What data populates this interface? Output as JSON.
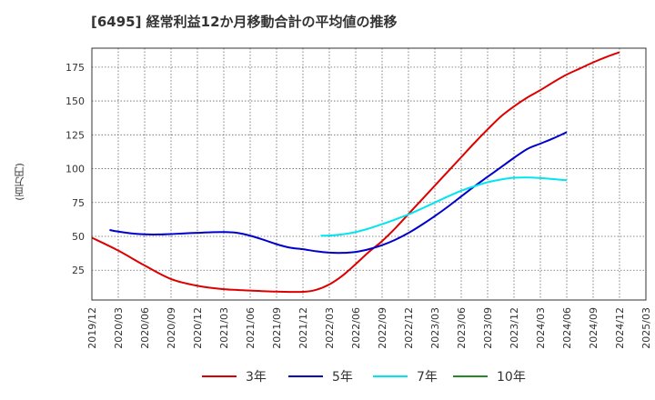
{
  "chart_data": {
    "type": "line",
    "title": "[6495]  経常利益12か月移動合計の平均値の推移",
    "ylabel": "(百万円)",
    "xlabel": "",
    "ylim": [
      3,
      189
    ],
    "yticks": [
      25,
      50,
      75,
      100,
      125,
      150,
      175
    ],
    "grid": true,
    "x_tick_labels": [
      "2019/12",
      "2020/03",
      "2020/06",
      "2020/09",
      "2020/12",
      "2021/03",
      "2021/06",
      "2021/09",
      "2021/12",
      "2022/03",
      "2022/06",
      "2022/09",
      "2022/12",
      "2023/03",
      "2023/06",
      "2023/09",
      "2023/12",
      "2024/03",
      "2024/06",
      "2024/09",
      "2024/12",
      "2025/03"
    ],
    "series": [
      {
        "name": "3年",
        "color": "#dd0000",
        "points": [
          [
            0,
            49
          ],
          [
            1,
            39.5
          ],
          [
            2,
            28.5
          ],
          [
            3,
            18.5
          ],
          [
            4,
            13.5
          ],
          [
            5,
            11
          ],
          [
            6,
            10
          ],
          [
            7,
            9.2
          ],
          [
            8,
            9
          ],
          [
            8.5,
            10.5
          ],
          [
            9,
            14.5
          ],
          [
            9.5,
            21
          ],
          [
            10,
            29.5
          ],
          [
            10.5,
            38.5
          ],
          [
            11,
            46.5
          ],
          [
            11.5,
            56
          ],
          [
            12,
            66.5
          ],
          [
            12.5,
            77
          ],
          [
            13,
            87.5
          ],
          [
            13.5,
            98
          ],
          [
            14,
            108.5
          ],
          [
            14.5,
            119
          ],
          [
            15,
            129
          ],
          [
            15.5,
            138.5
          ],
          [
            16,
            146
          ],
          [
            16.5,
            152.5
          ],
          [
            17,
            158
          ],
          [
            17.5,
            164
          ],
          [
            18,
            169.5
          ],
          [
            18.5,
            174
          ],
          [
            19,
            178.5
          ],
          [
            19.5,
            182.5
          ],
          [
            20,
            186
          ]
        ]
      },
      {
        "name": "5年",
        "color": "#0000cc",
        "points": [
          [
            0.67,
            54.7
          ],
          [
            1,
            53.5
          ],
          [
            1.5,
            52.2
          ],
          [
            2,
            51.5
          ],
          [
            2.5,
            51.4
          ],
          [
            3,
            51.7
          ],
          [
            3.5,
            52.2
          ],
          [
            4,
            52.6
          ],
          [
            4.5,
            53
          ],
          [
            5,
            53.2
          ],
          [
            5.5,
            52.6
          ],
          [
            6,
            50.5
          ],
          [
            6.5,
            47.5
          ],
          [
            7,
            44.2
          ],
          [
            7.5,
            41.7
          ],
          [
            8,
            40.5
          ],
          [
            8.5,
            39
          ],
          [
            9,
            38
          ],
          [
            9.5,
            37.8
          ],
          [
            10,
            38.5
          ],
          [
            10.5,
            40.5
          ],
          [
            11,
            43.5
          ],
          [
            11.5,
            47.5
          ],
          [
            12,
            52.5
          ],
          [
            12.5,
            58.5
          ],
          [
            13,
            65
          ],
          [
            13.5,
            72
          ],
          [
            14,
            79.5
          ],
          [
            14.5,
            87
          ],
          [
            15,
            94
          ],
          [
            15.5,
            101
          ],
          [
            16,
            108
          ],
          [
            16.5,
            114.5
          ],
          [
            17,
            118.5
          ],
          [
            17.5,
            122.5
          ],
          [
            18,
            127
          ]
        ]
      },
      {
        "name": "7年",
        "color": "#00e5ee",
        "points": [
          [
            8.67,
            50.5
          ],
          [
            9,
            50.6
          ],
          [
            9.5,
            51.5
          ],
          [
            10,
            53.2
          ],
          [
            10.5,
            55.8
          ],
          [
            11,
            59
          ],
          [
            11.5,
            62.5
          ],
          [
            12,
            66.2
          ],
          [
            12.5,
            70.5
          ],
          [
            13,
            75
          ],
          [
            13.5,
            79.5
          ],
          [
            14,
            83.7
          ],
          [
            14.5,
            87
          ],
          [
            15,
            90
          ],
          [
            15.5,
            92
          ],
          [
            16,
            93.3
          ],
          [
            16.5,
            93.5
          ],
          [
            17,
            93.1
          ],
          [
            17.5,
            92.3
          ],
          [
            18,
            91.5
          ]
        ]
      },
      {
        "name": "10年",
        "color": "#228b22",
        "points": []
      }
    ]
  }
}
